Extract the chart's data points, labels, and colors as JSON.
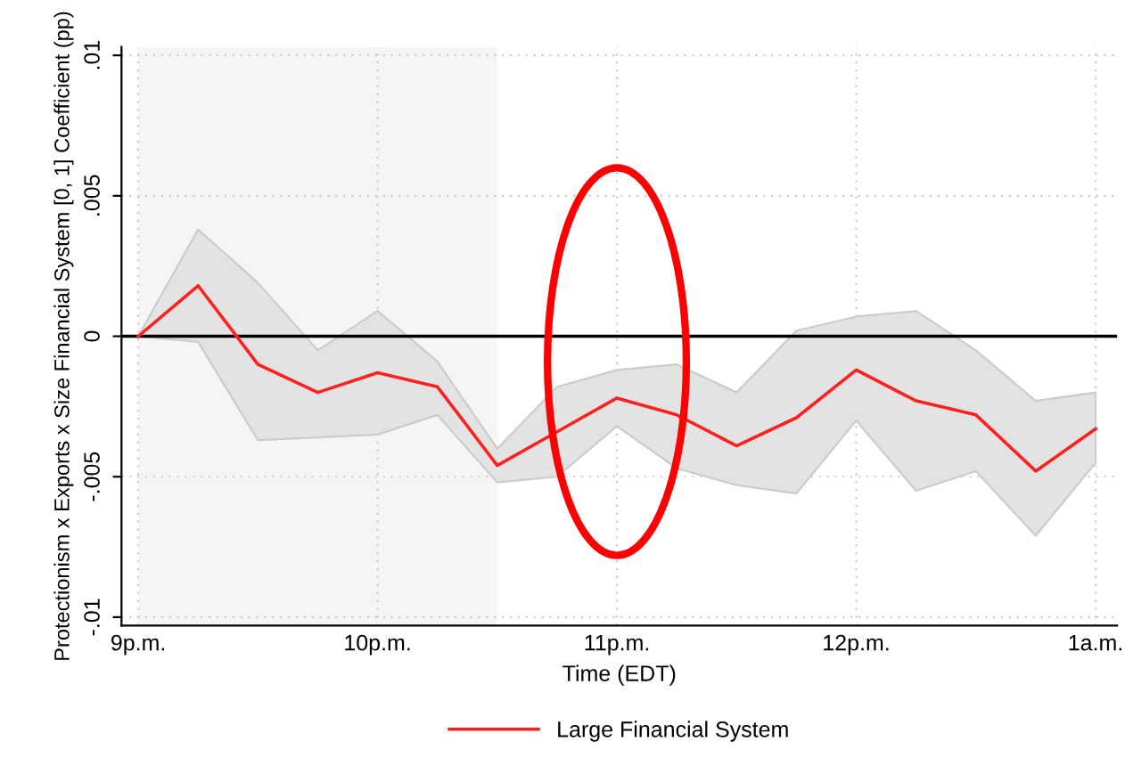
{
  "chart_data": {
    "type": "line",
    "xlabel": "Time (EDT)",
    "ylabel": "Protectionism x Exports x Size Financial System [0, 1] Coefficient (pp)",
    "categories": [
      "9p.m.",
      null,
      null,
      null,
      "10p.m.",
      null,
      null,
      null,
      "11p.m.",
      null,
      null,
      null,
      "12p.m.",
      null,
      null,
      null,
      "1a.m."
    ],
    "series": [
      {
        "name": "Large Financial System",
        "color": "#ff2020",
        "values": [
          0,
          0.0018,
          -0.001,
          -0.002,
          -0.0013,
          -0.0018,
          -0.0046,
          -0.0034,
          -0.0022,
          -0.0028,
          -0.0039,
          -0.0029,
          -0.0012,
          -0.0023,
          -0.0028,
          -0.0048,
          -0.0033
        ],
        "upper": [
          0,
          0.0038,
          0.0019,
          -0.0005,
          0.0009,
          -0.0009,
          -0.004,
          -0.0018,
          -0.0012,
          -0.001,
          -0.002,
          0.0002,
          0.0007,
          0.0009,
          -0.0005,
          -0.0023,
          -0.002
        ],
        "lower": [
          0,
          -0.0002,
          -0.0037,
          -0.0036,
          -0.0035,
          -0.0028,
          -0.0052,
          -0.005,
          -0.0032,
          -0.0047,
          -0.0053,
          -0.0056,
          -0.003,
          -0.0055,
          -0.0048,
          -0.0071,
          -0.0045
        ]
      }
    ],
    "ylim": [
      -0.0103,
      0.0103
    ],
    "yticks": [
      {
        "value": -0.01,
        "label": "-.01"
      },
      {
        "value": -0.005,
        "label": "-.005"
      },
      {
        "value": 0,
        "label": "0"
      },
      {
        "value": 0.005,
        "label": ".005"
      },
      {
        "value": 0.01,
        "label": ".01"
      }
    ],
    "ref_lines": [
      {
        "axis": "y",
        "value": 0,
        "color": "#000000"
      }
    ],
    "grid": true,
    "legend": "bottom",
    "marker": "none",
    "line_style": "solid"
  }
}
